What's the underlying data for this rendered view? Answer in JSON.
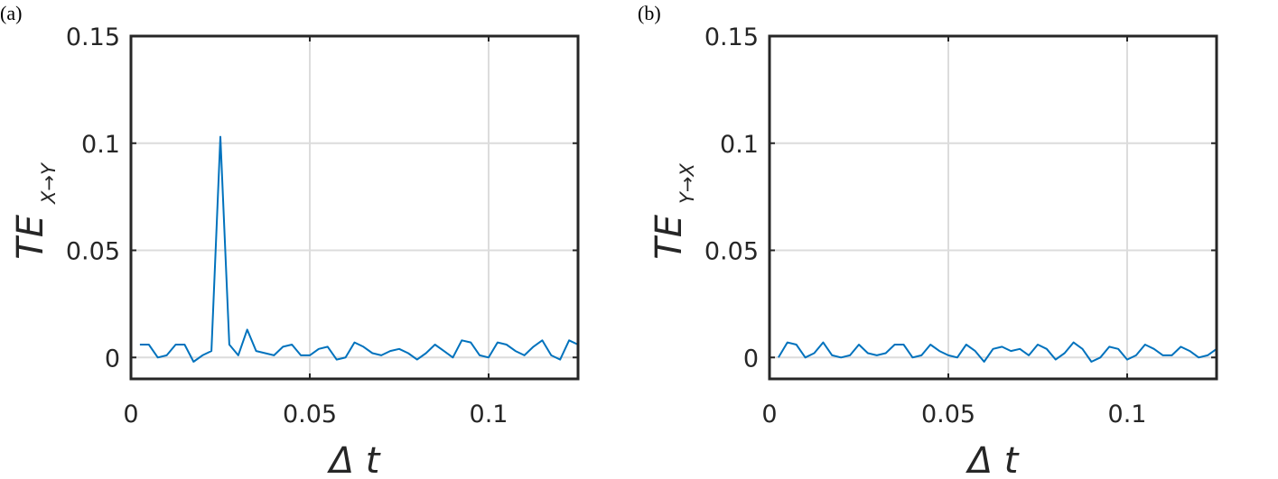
{
  "chart_data": [
    {
      "panel_label": "(a)",
      "type": "line",
      "ylabel_main": "TE",
      "ylabel_sub": "X→Y",
      "xlabel": "Δ t",
      "xlim": [
        0,
        0.125
      ],
      "ylim": [
        -0.01,
        0.15
      ],
      "xticks": [
        0,
        0.05,
        0.1
      ],
      "xtick_labels": [
        "0",
        "0.05",
        "0.1"
      ],
      "yticks": [
        0,
        0.05,
        0.1,
        0.15
      ],
      "ytick_labels": [
        "0",
        "0.05",
        "0.1",
        "0.15"
      ],
      "grid": true,
      "color": "#0072BD",
      "series": [
        {
          "x": [
            0.0025,
            0.005,
            0.0075,
            0.01,
            0.0125,
            0.015,
            0.0175,
            0.02,
            0.0225,
            0.025,
            0.0275,
            0.03,
            0.0325,
            0.035,
            0.0375,
            0.04,
            0.0425,
            0.045,
            0.0475,
            0.05,
            0.0525,
            0.055,
            0.0575,
            0.06,
            0.0625,
            0.065,
            0.0675,
            0.07,
            0.0725,
            0.075,
            0.0775,
            0.08,
            0.0825,
            0.085,
            0.0875,
            0.09,
            0.0925,
            0.095,
            0.0975,
            0.1,
            0.1025,
            0.105,
            0.1075,
            0.11,
            0.1125,
            0.115,
            0.1175,
            0.12,
            0.1225,
            0.125
          ],
          "y": [
            0.006,
            0.006,
            0.0,
            0.001,
            0.006,
            0.006,
            -0.002,
            0.001,
            0.003,
            0.103,
            0.006,
            0.001,
            0.013,
            0.003,
            0.002,
            0.001,
            0.005,
            0.006,
            0.001,
            0.001,
            0.004,
            0.005,
            -0.001,
            0.0,
            0.007,
            0.005,
            0.002,
            0.001,
            0.003,
            0.004,
            0.002,
            -0.001,
            0.002,
            0.006,
            0.003,
            0.0,
            0.008,
            0.007,
            0.001,
            0.0,
            0.007,
            0.006,
            0.003,
            0.001,
            0.005,
            0.008,
            0.001,
            -0.001,
            0.008,
            0.006
          ]
        }
      ]
    },
    {
      "panel_label": "(b)",
      "type": "line",
      "ylabel_main": "TE",
      "ylabel_sub": "Y→X",
      "xlabel": "Δ t",
      "xlim": [
        0,
        0.125
      ],
      "ylim": [
        -0.01,
        0.15
      ],
      "xticks": [
        0,
        0.05,
        0.1
      ],
      "xtick_labels": [
        "0",
        "0.05",
        "0.1"
      ],
      "yticks": [
        0,
        0.05,
        0.1,
        0.15
      ],
      "ytick_labels": [
        "0",
        "0.05",
        "0.1",
        "0.15"
      ],
      "grid": true,
      "color": "#0072BD",
      "series": [
        {
          "x": [
            0.0025,
            0.005,
            0.0075,
            0.01,
            0.0125,
            0.015,
            0.0175,
            0.02,
            0.0225,
            0.025,
            0.0275,
            0.03,
            0.0325,
            0.035,
            0.0375,
            0.04,
            0.0425,
            0.045,
            0.0475,
            0.05,
            0.0525,
            0.055,
            0.0575,
            0.06,
            0.0625,
            0.065,
            0.0675,
            0.07,
            0.0725,
            0.075,
            0.0775,
            0.08,
            0.0825,
            0.085,
            0.0875,
            0.09,
            0.0925,
            0.095,
            0.0975,
            0.1,
            0.1025,
            0.105,
            0.1075,
            0.11,
            0.1125,
            0.115,
            0.1175,
            0.12,
            0.1225,
            0.125
          ],
          "y": [
            0.0,
            0.007,
            0.006,
            0.0,
            0.002,
            0.007,
            0.001,
            0.0,
            0.001,
            0.006,
            0.002,
            0.001,
            0.002,
            0.006,
            0.006,
            0.0,
            0.001,
            0.006,
            0.003,
            0.001,
            0.0,
            0.006,
            0.003,
            -0.002,
            0.004,
            0.005,
            0.003,
            0.004,
            0.001,
            0.006,
            0.004,
            -0.001,
            0.002,
            0.007,
            0.004,
            -0.002,
            0.0,
            0.005,
            0.004,
            -0.001,
            0.001,
            0.006,
            0.004,
            0.001,
            0.001,
            0.005,
            0.003,
            0.0,
            0.001,
            0.004
          ]
        }
      ]
    }
  ]
}
